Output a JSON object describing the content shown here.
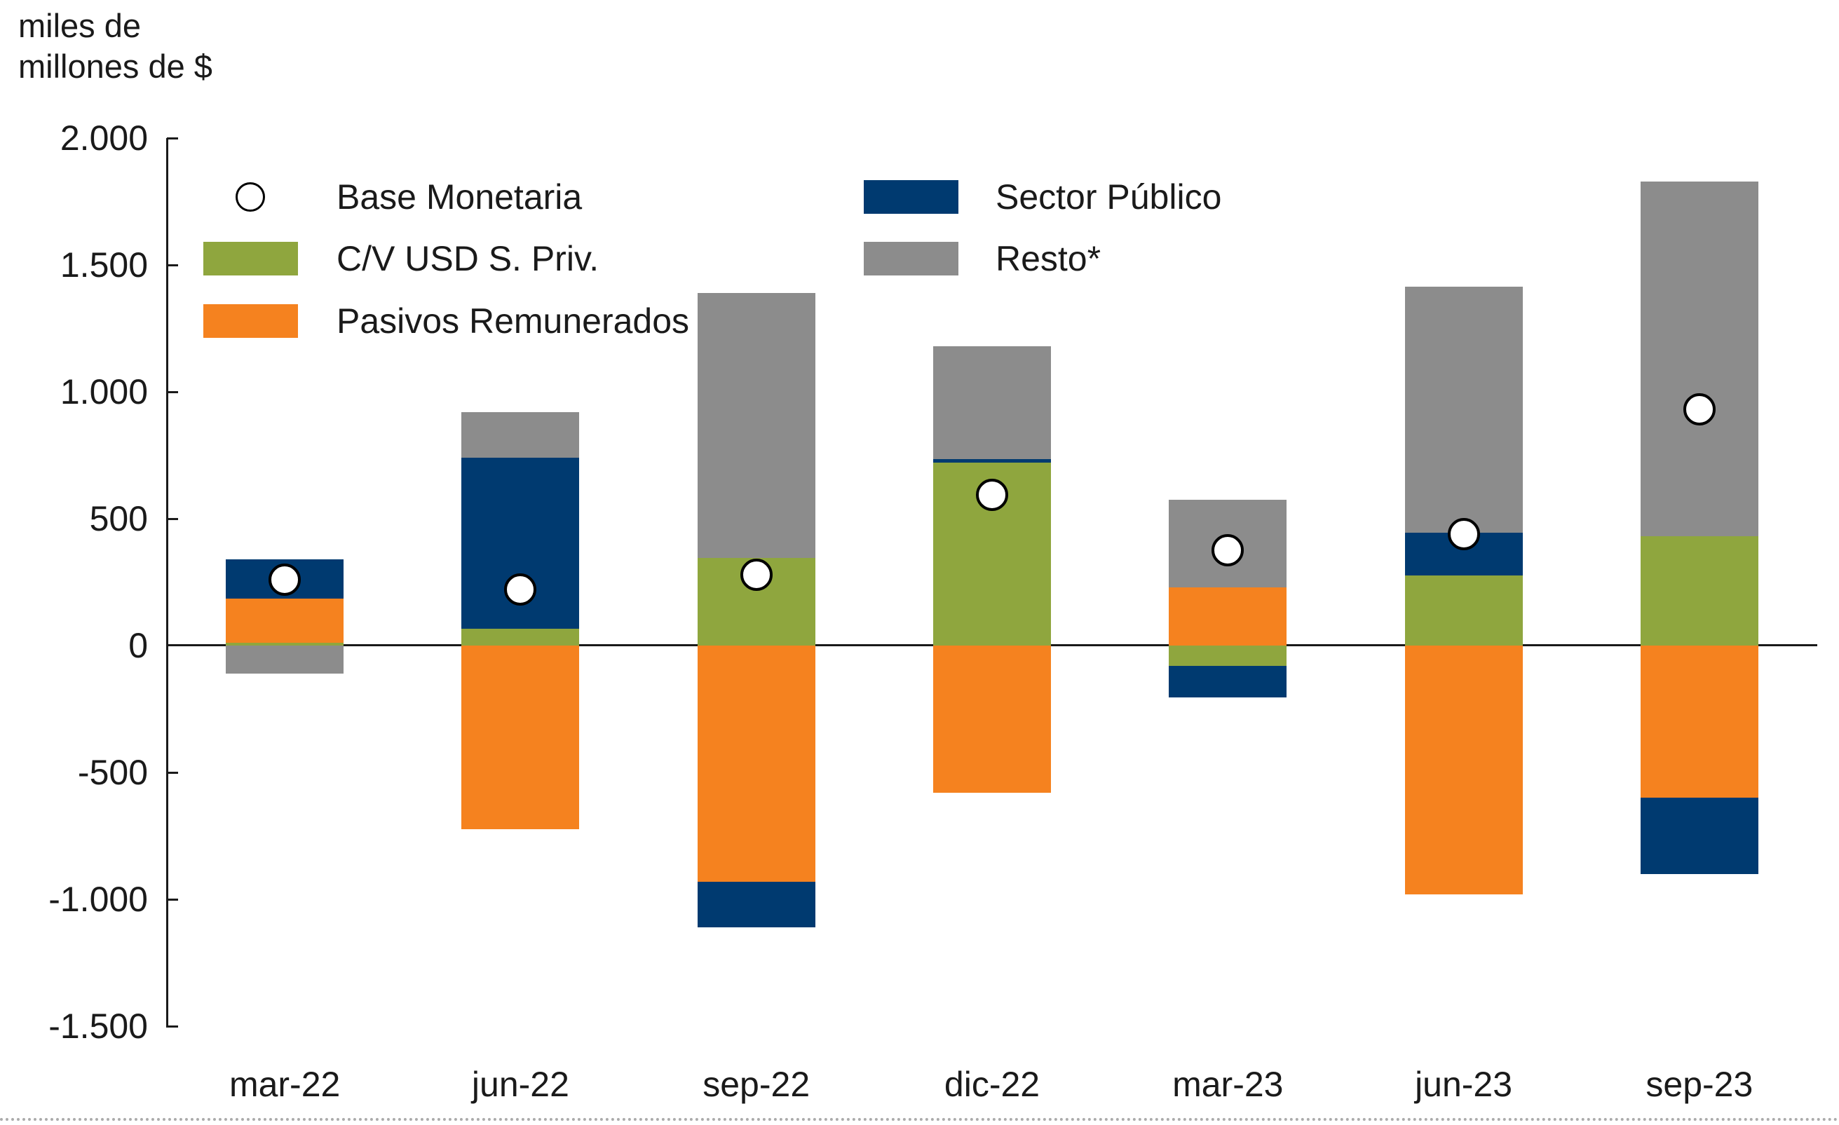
{
  "chart_data": {
    "type": "bar",
    "subtype": "stacked-bar-with-scatter-overlay",
    "unit_label": [
      "miles de",
      "millones de $"
    ],
    "xlabel": "",
    "ylabel": "miles de millones de $",
    "ylim": [
      -1500,
      2000
    ],
    "grid": false,
    "legend_position": "top-left-inside-two-columns",
    "categories": [
      "mar-22",
      "jun-22",
      "sep-22",
      "dic-22",
      "mar-23",
      "jun-23",
      "sep-23"
    ],
    "y_ticks": [
      {
        "label": "2.000",
        "value": 2000
      },
      {
        "label": "1.500",
        "value": 1500
      },
      {
        "label": "1.000",
        "value": 1000
      },
      {
        "label": "500",
        "value": 500
      },
      {
        "label": "0",
        "value": 0
      },
      {
        "label": "-500",
        "value": -500
      },
      {
        "label": "-1.000",
        "value": -1000
      },
      {
        "label": "-1.500",
        "value": -1500
      }
    ],
    "series": [
      {
        "name": "C/V USD S. Priv.",
        "color": "#8FA63E",
        "values": [
          10,
          65,
          345,
          720,
          -80,
          275,
          430
        ]
      },
      {
        "name": "Pasivos Remunerados",
        "color": "#F5821F",
        "values": [
          175,
          -725,
          -930,
          -580,
          230,
          -980,
          -600
        ]
      },
      {
        "name": "Sector Público",
        "color": "#003A70",
        "values": [
          155,
          675,
          -180,
          15,
          -125,
          170,
          -300
        ]
      },
      {
        "name": "Resto*",
        "color": "#8C8C8C",
        "values": [
          -110,
          180,
          1045,
          445,
          345,
          970,
          1400
        ]
      }
    ],
    "marker_series": {
      "name": "Base Monetaria",
      "marker": "circle-white-black-outline",
      "values": [
        260,
        220,
        280,
        595,
        375,
        440,
        930
      ]
    },
    "legend": {
      "items": [
        {
          "label": "Base Monetaria",
          "handle": "circle-marker"
        },
        {
          "label": "C/V USD S. Priv.",
          "handle": "swatch",
          "series_index": 0
        },
        {
          "label": "Pasivos Remunerados",
          "handle": "swatch",
          "series_index": 1
        },
        {
          "label": "Sector Público",
          "handle": "swatch",
          "series_index": 2
        },
        {
          "label": "Resto*",
          "handle": "swatch",
          "series_index": 3
        }
      ]
    }
  }
}
